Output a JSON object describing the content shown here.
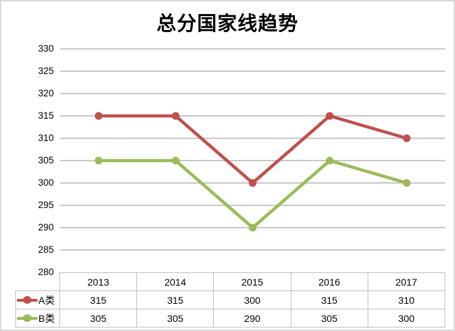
{
  "title": "总分国家线趋势",
  "chart_data": {
    "type": "line",
    "title": "总分国家线趋势",
    "categories": [
      "2013",
      "2014",
      "2015",
      "2016",
      "2017"
    ],
    "series": [
      {
        "name": "A类",
        "color": "#C0504D",
        "values": [
          315,
          315,
          300,
          315,
          310
        ]
      },
      {
        "name": "B类",
        "color": "#9BBB59",
        "values": [
          305,
          305,
          290,
          305,
          300
        ]
      }
    ],
    "xlabel": "",
    "ylabel": "",
    "ylim": [
      280,
      330
    ],
    "ytick_step": 5,
    "yticks": [
      "330",
      "325",
      "320",
      "315",
      "310",
      "305",
      "300",
      "295",
      "290",
      "285",
      "280"
    ],
    "grid": true,
    "gridline_color": "#c8c8c8",
    "legend_position": "data-table-left"
  }
}
